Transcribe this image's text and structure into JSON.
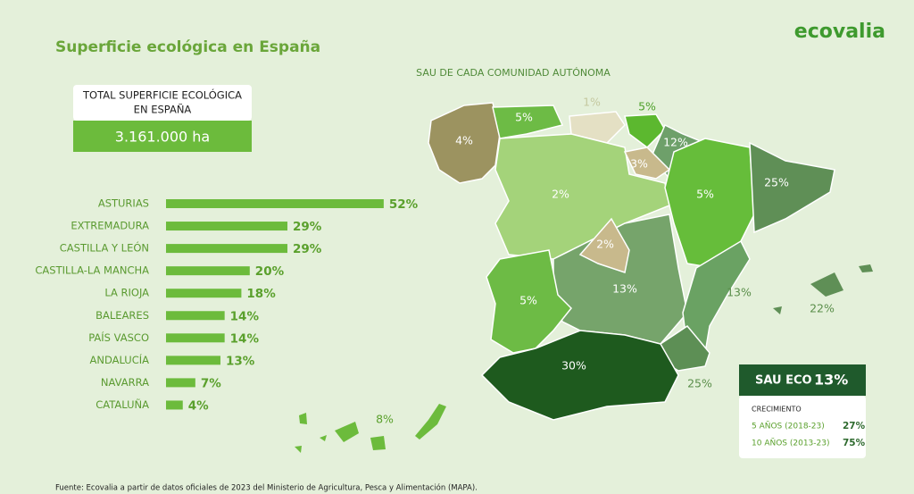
{
  "header": {
    "title": "Superficie ecológica en España",
    "logo": "ecovalia"
  },
  "total": {
    "lines": [
      "TOTAL SUPERFICIE ECOLÓGICA",
      "EN ESPAÑA"
    ],
    "value": "3.161.000 ha"
  },
  "chart_data": {
    "type": "hbar",
    "categories": [
      "ASTURIAS",
      "EXTREMADURA",
      "CASTILLA Y LEÓN",
      "CASTILLA-LA MANCHA",
      "LA RIOJA",
      "BALEARES",
      "PAÍS VASCO",
      "ANDALUCÍA",
      "NAVARRA",
      "CATALUÑA"
    ],
    "values": [
      52,
      29,
      29,
      20,
      18,
      14,
      14,
      13,
      7,
      4
    ],
    "value_labels": [
      "52%",
      "29%",
      "29%",
      "20%",
      "18%",
      "14%",
      "14%",
      "13%",
      "7%",
      "4%"
    ],
    "color": "#6cbb3c"
  },
  "map": {
    "title": "SAU DE CADA COMUNIDAD AUTÓNOMA",
    "regions": [
      {
        "value": "4%"
      },
      {
        "value": "5%"
      },
      {
        "value": "1%"
      },
      {
        "value": "5%"
      },
      {
        "value": "12%"
      },
      {
        "value": "3%"
      },
      {
        "value": "2%"
      },
      {
        "value": "5%"
      },
      {
        "value": "25%"
      },
      {
        "value": "2%"
      },
      {
        "value": "13%"
      },
      {
        "value": "5%"
      },
      {
        "value": "13%"
      },
      {
        "value": "22%"
      },
      {
        "value": "30%"
      },
      {
        "value": "25%"
      },
      {
        "value": "8%"
      }
    ]
  },
  "sau": {
    "label": "SAU ECO",
    "value": "13%",
    "growth_title": "CRECIMIENTO",
    "rows": [
      {
        "label": "5 AÑOS (2018-23)",
        "value": "27%"
      },
      {
        "label": "10 AÑOS (2013-23)",
        "value": "75%"
      }
    ]
  },
  "source": "Fuente: Ecovalia a partir de datos oficiales de 2023 del Ministerio de Agricultura, Pesca y Alimentación (MAPA)."
}
